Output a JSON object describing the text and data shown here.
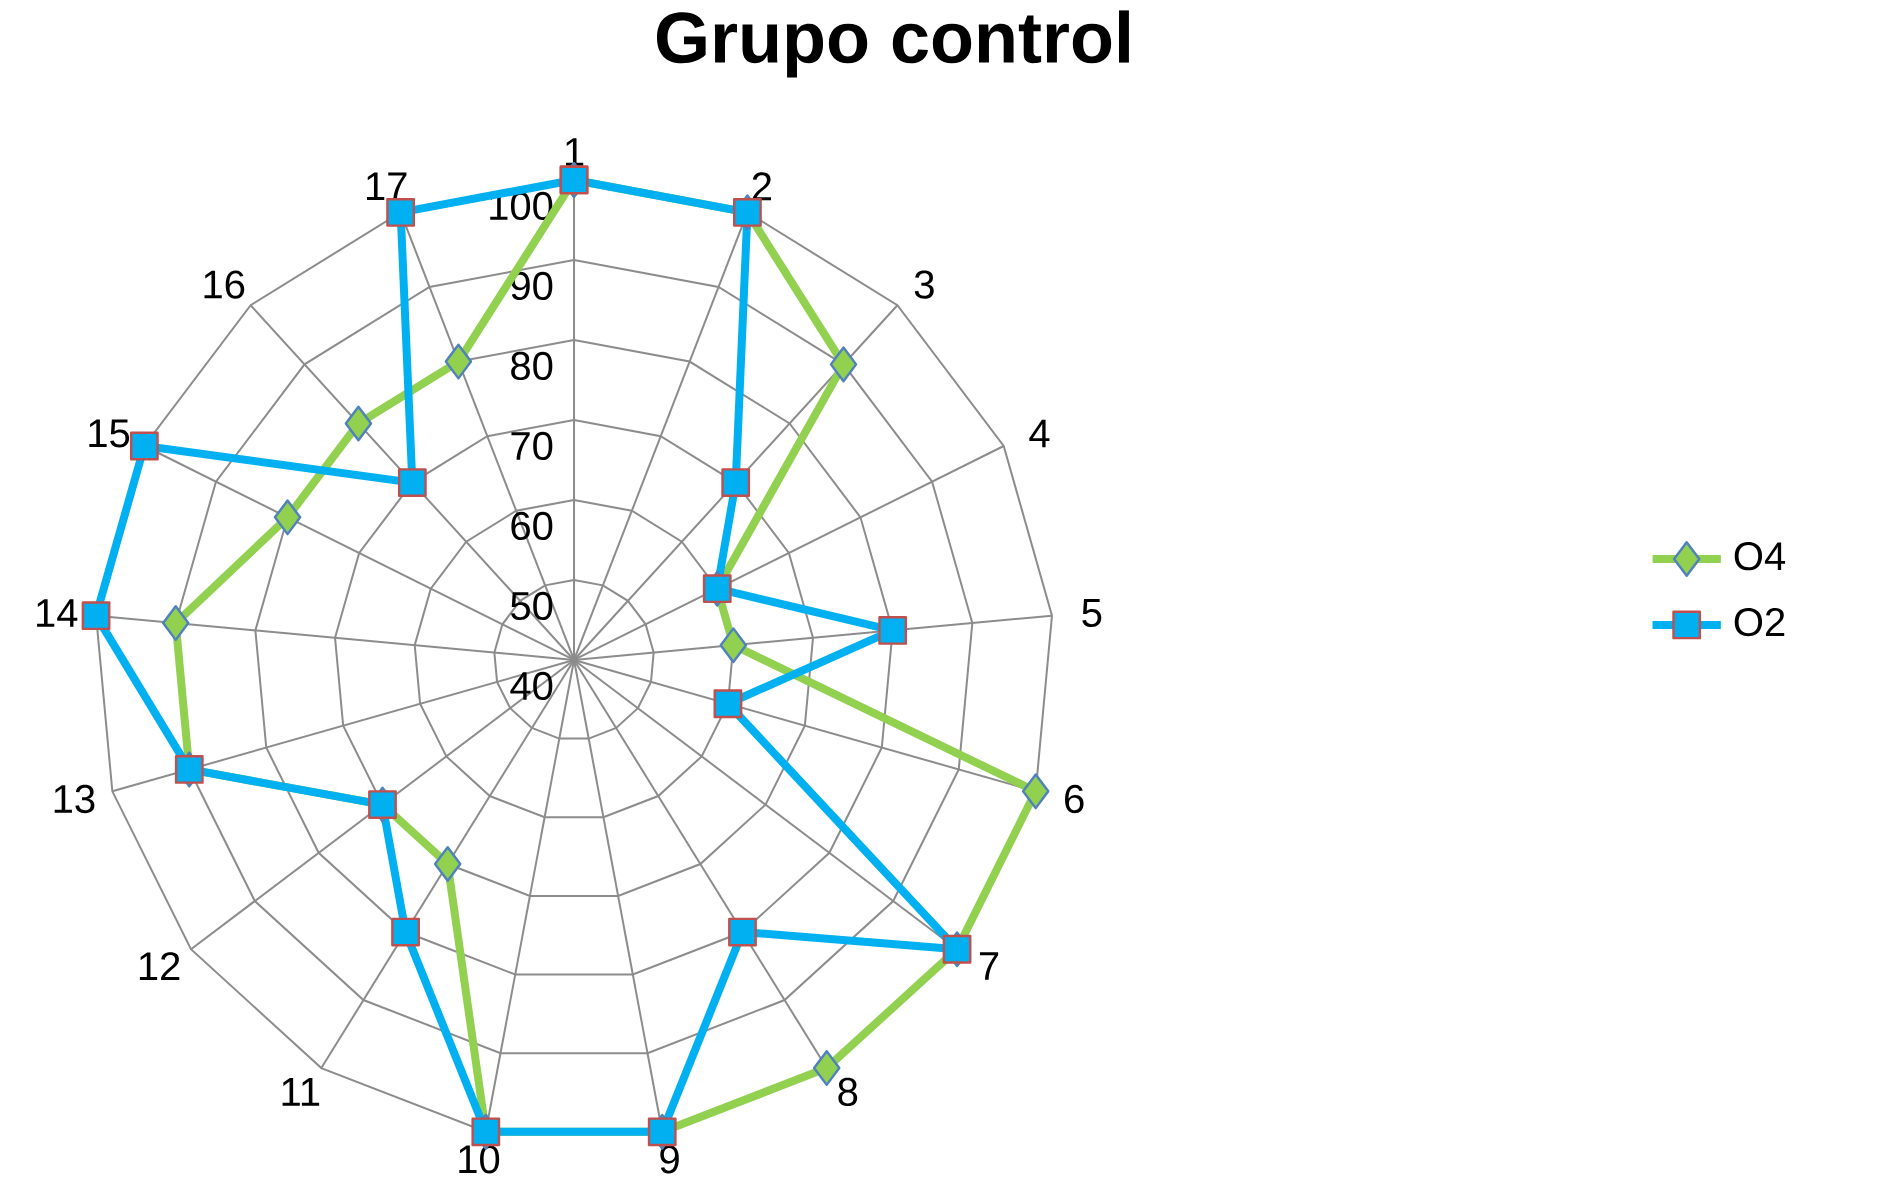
{
  "chart_data": {
    "type": "radar",
    "title": "Grupo control",
    "categories": [
      "1",
      "2",
      "3",
      "4",
      "5",
      "6",
      "7",
      "8",
      "9",
      "10",
      "11",
      "12",
      "13",
      "14",
      "15",
      "16",
      "17"
    ],
    "ylim": [
      40,
      100
    ],
    "yticks": [
      40,
      50,
      60,
      70,
      80,
      90,
      100
    ],
    "grid": true,
    "legend": "right",
    "series": [
      {
        "name": "O4",
        "color": "#92d050",
        "marker": "diamond",
        "values": [
          100,
          100,
          90,
          60,
          60,
          100,
          100,
          100,
          100,
          100,
          70,
          70,
          90,
          90,
          80,
          80,
          80
        ]
      },
      {
        "name": "O2",
        "color": "#00b0f0",
        "marker": "square",
        "values": [
          100,
          100,
          70,
          60,
          80,
          60,
          100,
          80,
          100,
          100,
          80,
          70,
          90,
          100,
          100,
          70,
          100
        ]
      }
    ]
  }
}
